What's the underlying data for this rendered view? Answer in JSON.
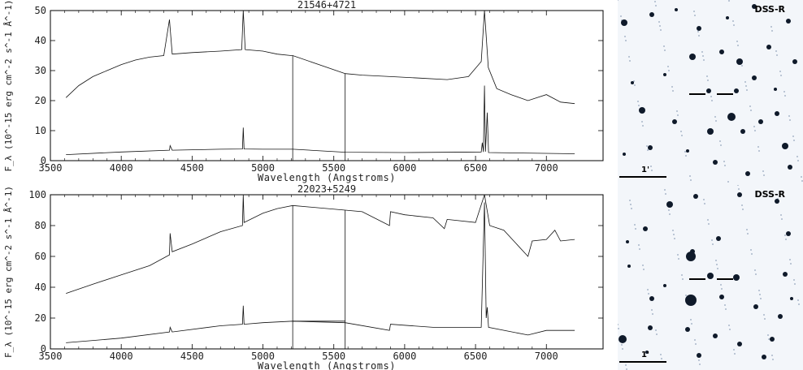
{
  "chart_data": [
    {
      "type": "line",
      "title": "21546+4721",
      "xlabel": "Wavelength (Angstroms)",
      "ylabel": "F_λ (10^-15 erg cm^-2 s^-1 Å^-1)",
      "xlim": [
        3500,
        7400
      ],
      "ylim": [
        0,
        50
      ],
      "xticks": [
        3500,
        4000,
        4500,
        5000,
        5500,
        6000,
        6500,
        7000
      ],
      "yticks": [
        0,
        10,
        20,
        30,
        40,
        50
      ],
      "gap": [
        5210,
        5580
      ],
      "series": [
        {
          "values": [
            [
              3610,
              21
            ],
            [
              3700,
              25
            ],
            [
              3800,
              28
            ],
            [
              3900,
              30
            ],
            [
              4000,
              32
            ],
            [
              4100,
              33.5
            ],
            [
              4200,
              34.5
            ],
            [
              4300,
              35
            ],
            [
              4340,
              47
            ],
            [
              4360,
              35.5
            ],
            [
              4500,
              36
            ],
            [
              4700,
              36.5
            ],
            [
              4850,
              37
            ],
            [
              4861,
              50
            ],
            [
              4875,
              37
            ],
            [
              5000,
              36.5
            ],
            [
              5100,
              35.5
            ],
            [
              5200,
              35
            ],
            [
              5210,
              35
            ],
            [
              5580,
              29
            ],
            [
              5700,
              28.5
            ],
            [
              5900,
              28
            ],
            [
              6100,
              27.5
            ],
            [
              6300,
              27
            ],
            [
              6450,
              28
            ],
            [
              6540,
              33
            ],
            [
              6563,
              50
            ],
            [
              6590,
              31
            ],
            [
              6650,
              24
            ],
            [
              6750,
              22
            ],
            [
              6870,
              20
            ],
            [
              7000,
              22
            ],
            [
              7100,
              19.5
            ],
            [
              7200,
              19
            ]
          ]
        },
        {
          "values": [
            [
              3610,
              2
            ],
            [
              4000,
              2.9
            ],
            [
              4340,
              3.5
            ],
            [
              4345,
              5
            ],
            [
              4360,
              3.5
            ],
            [
              4700,
              3.8
            ],
            [
              4855,
              3.9
            ],
            [
              4861,
              11
            ],
            [
              4867,
              3.9
            ],
            [
              5000,
              3.8
            ],
            [
              5210,
              3.8
            ],
            [
              5580,
              2.8
            ],
            [
              6000,
              2.7
            ],
            [
              6540,
              2.9
            ],
            [
              6548,
              6
            ],
            [
              6556,
              2.9
            ],
            [
              6563,
              25
            ],
            [
              6570,
              3
            ],
            [
              6583,
              16
            ],
            [
              6592,
              2.7
            ],
            [
              7200,
              2.3
            ]
          ]
        }
      ]
    },
    {
      "type": "line",
      "title": "22023+5249",
      "xlabel": "Wavelength (Angstroms)",
      "ylabel": "F_λ (10^-15 erg cm^-2 s^-1 Å^-1)",
      "xlim": [
        3500,
        7400
      ],
      "ylim": [
        0,
        100
      ],
      "xticks": [
        3500,
        4000,
        4500,
        5000,
        5500,
        6000,
        6500,
        7000
      ],
      "yticks": [
        0,
        20,
        40,
        60,
        80,
        100
      ],
      "gap": [
        5210,
        5580
      ],
      "series": [
        {
          "values": [
            [
              3610,
              36
            ],
            [
              3800,
              42
            ],
            [
              4000,
              48
            ],
            [
              4200,
              54
            ],
            [
              4340,
              61
            ],
            [
              4345,
              75
            ],
            [
              4360,
              63
            ],
            [
              4500,
              68
            ],
            [
              4700,
              76
            ],
            [
              4855,
              80
            ],
            [
              4861,
              100
            ],
            [
              4867,
              82
            ],
            [
              5000,
              88
            ],
            [
              5100,
              91
            ],
            [
              5210,
              93
            ],
            [
              5580,
              90
            ],
            [
              5700,
              89
            ],
            [
              5893,
              80
            ],
            [
              5900,
              89
            ],
            [
              6000,
              87
            ],
            [
              6200,
              85
            ],
            [
              6280,
              78
            ],
            [
              6300,
              84
            ],
            [
              6500,
              82
            ],
            [
              6563,
              100
            ],
            [
              6600,
              80
            ],
            [
              6700,
              77
            ],
            [
              6870,
              60
            ],
            [
              6900,
              70
            ],
            [
              7000,
              71
            ],
            [
              7060,
              77
            ],
            [
              7100,
              70
            ],
            [
              7200,
              71
            ]
          ]
        },
        {
          "values": [
            [
              3610,
              4
            ],
            [
              4000,
              7
            ],
            [
              4340,
              11
            ],
            [
              4345,
              14
            ],
            [
              4360,
              11
            ],
            [
              4700,
              15
            ],
            [
              4855,
              16
            ],
            [
              4861,
              28
            ],
            [
              4867,
              16
            ],
            [
              5000,
              17
            ],
            [
              5210,
              18
            ],
            [
              5580,
              17
            ],
            [
              5893,
              12
            ],
            [
              5900,
              16
            ],
            [
              6200,
              14
            ],
            [
              6540,
              14
            ],
            [
              6563,
              95
            ],
            [
              6575,
              20
            ],
            [
              6583,
              27
            ],
            [
              6592,
              14
            ],
            [
              6870,
              9
            ],
            [
              7000,
              12
            ],
            [
              7200,
              12
            ]
          ]
        }
      ]
    }
  ],
  "images": [
    {
      "label": "DSS-R",
      "scale_label": "1'"
    },
    {
      "label": "DSS-R",
      "scale_label": "1'"
    }
  ]
}
